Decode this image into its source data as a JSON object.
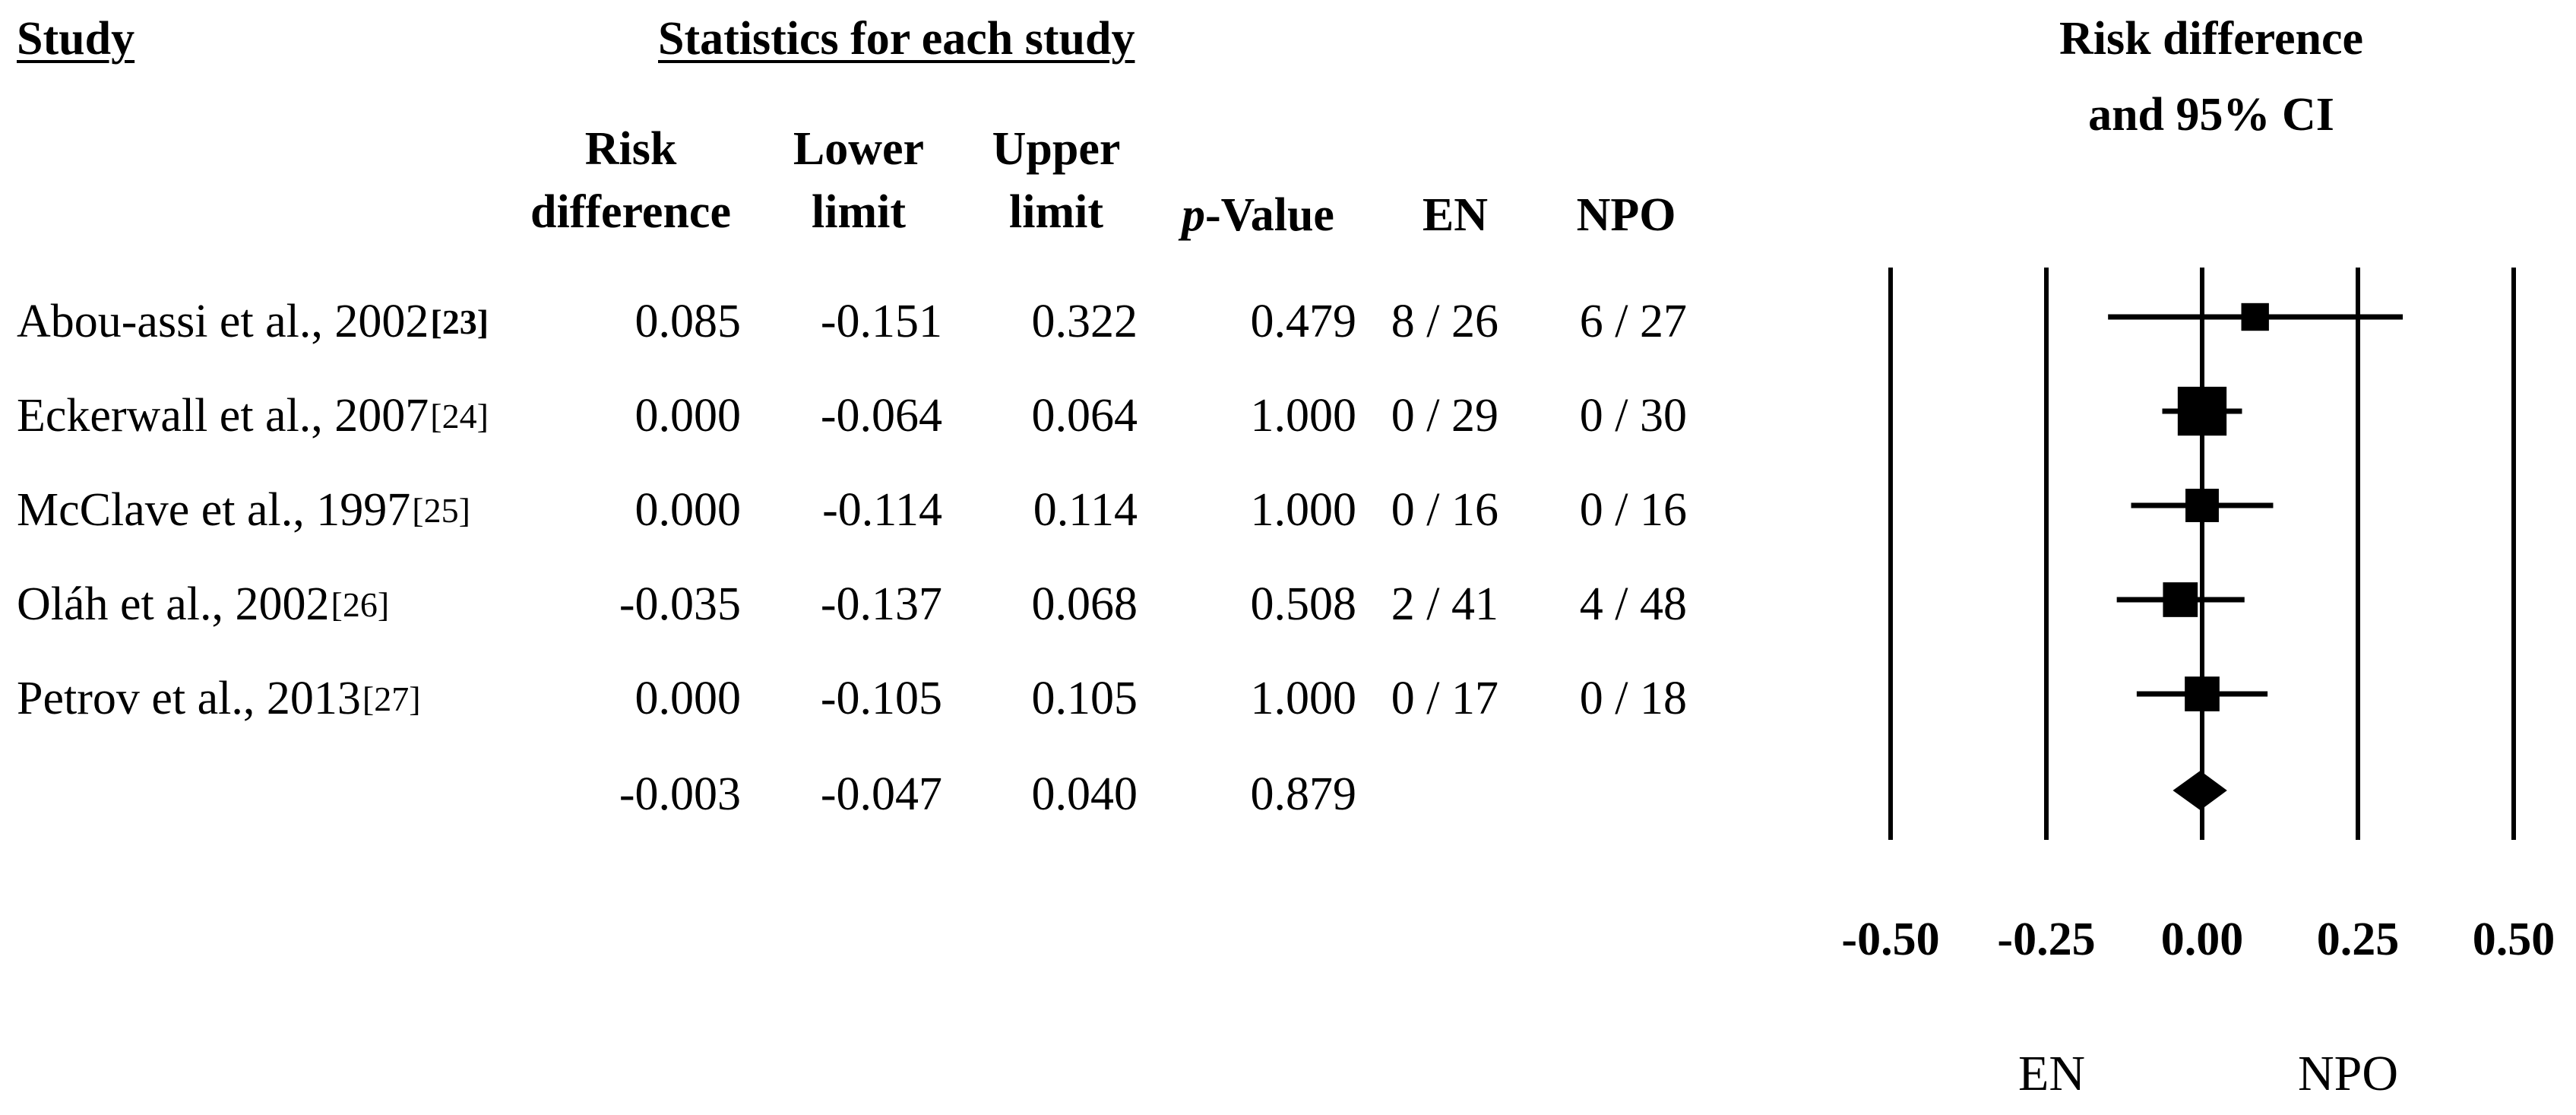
{
  "headers": {
    "study": "Study",
    "stats": "Statistics for each study",
    "risk_difference": [
      "Risk",
      "difference"
    ],
    "lower_limit": [
      "Lower",
      "limit"
    ],
    "upper_limit": [
      "Upper",
      "limit"
    ],
    "p_value_italic": "p",
    "p_value_rest": "-Value",
    "en": "EN",
    "npo": "NPO",
    "plot_title": [
      "Risk difference",
      "and 95% CI"
    ]
  },
  "rows": [
    {
      "study": "Abou-assi et al., 2002",
      "ref": "[23]",
      "rd": "0.085",
      "lower": "-0.151",
      "upper": "0.322",
      "p": "0.479",
      "en": "8 / 26",
      "npo": "6 / 27"
    },
    {
      "study": "Eckerwall et al., 2007",
      "ref": "[24]",
      "rd": "0.000",
      "lower": "-0.064",
      "upper": "0.064",
      "p": "1.000",
      "en": "0 / 29",
      "npo": "0 / 30"
    },
    {
      "study": "McClave et al., 1997",
      "ref": "[25]",
      "rd": "0.000",
      "lower": "-0.114",
      "upper": "0.114",
      "p": "1.000",
      "en": "0 / 16",
      "npo": "0 / 16"
    },
    {
      "study": "Oláh et al., 2002",
      "ref": "[26]",
      "rd": "-0.035",
      "lower": "-0.137",
      "upper": "0.068",
      "p": "0.508",
      "en": "2 / 41",
      "npo": "4 / 48"
    },
    {
      "study": "Petrov et al., 2013",
      "ref": "[27]",
      "rd": "0.000",
      "lower": "-0.105",
      "upper": "0.105",
      "p": "1.000",
      "en": "0 / 17",
      "npo": "0 / 18"
    }
  ],
  "summary": {
    "rd": "-0.003",
    "lower": "-0.047",
    "upper": "0.040",
    "p": "0.879"
  },
  "chart_data": {
    "type": "forest",
    "title": "Risk difference and 95% CI",
    "xlim": [
      -0.5,
      0.5
    ],
    "xticks": [
      "-0.50",
      "-0.25",
      "0.00",
      "0.25",
      "0.50"
    ],
    "xtick_values": [
      -0.5,
      -0.25,
      0.0,
      0.25,
      0.5
    ],
    "direction_labels": {
      "left": "EN",
      "right": "NPO"
    },
    "studies": [
      {
        "label": "Abou-assi et al., 2002",
        "estimate": 0.085,
        "lower": -0.151,
        "upper": 0.322,
        "weight": 0.08
      },
      {
        "label": "Eckerwall et al., 2007",
        "estimate": 0.0,
        "lower": -0.064,
        "upper": 0.064,
        "weight": 0.45
      },
      {
        "label": "McClave et al., 1997",
        "estimate": 0.0,
        "lower": -0.114,
        "upper": 0.114,
        "weight": 0.15
      },
      {
        "label": "Oláh et al., 2002",
        "estimate": -0.035,
        "lower": -0.137,
        "upper": 0.068,
        "weight": 0.17
      },
      {
        "label": "Petrov et al., 2013",
        "estimate": 0.0,
        "lower": -0.105,
        "upper": 0.105,
        "weight": 0.17
      }
    ],
    "summary": {
      "estimate": -0.003,
      "lower": -0.047,
      "upper": 0.04
    },
    "grid": true
  }
}
